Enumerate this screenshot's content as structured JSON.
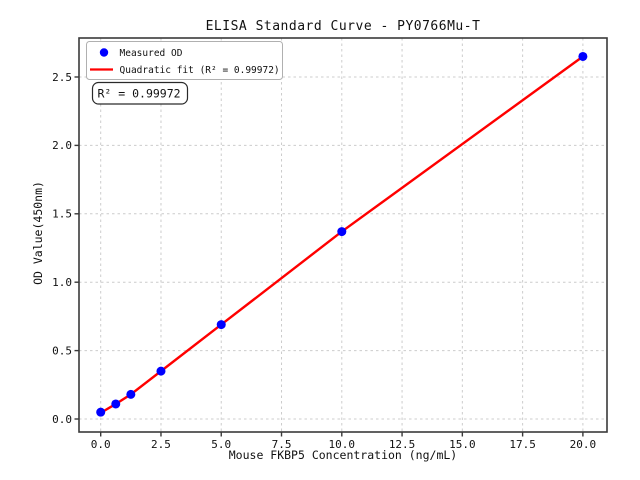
{
  "window": {
    "title": "ELISA Standard Curve - PY0766Mu-T"
  },
  "chart_data": {
    "type": "scatter",
    "title": "ELISA Standard Curve - PY0766Mu-T",
    "xlabel": "Mouse FKBP5 Concentration (ng/mL)",
    "ylabel": "OD Value(450nm)",
    "xlim": [
      -0.9,
      21.0
    ],
    "ylim": [
      -0.095,
      2.785
    ],
    "xticks": [
      0.0,
      2.5,
      5.0,
      7.5,
      10.0,
      12.5,
      15.0,
      17.5,
      20.0
    ],
    "xtick_labels": [
      "0.0",
      "2.5",
      "5.0",
      "7.5",
      "10.0",
      "12.5",
      "15.0",
      "17.5",
      "20.0"
    ],
    "yticks": [
      0.0,
      0.5,
      1.0,
      1.5,
      2.0,
      2.5
    ],
    "ytick_labels": [
      "0.0",
      "0.5",
      "1.0",
      "1.5",
      "2.0",
      "2.5"
    ],
    "grid": true,
    "grid_style": "dashed",
    "legend_position": "upper left",
    "series": [
      {
        "name": "Measured OD",
        "type": "scatter",
        "color": "#0000ff",
        "x": [
          0,
          0.625,
          1.25,
          2.5,
          5,
          10,
          20
        ],
        "y": [
          0.05,
          0.11,
          0.18,
          0.35,
          0.69,
          1.37,
          2.65
        ]
      },
      {
        "name": "Quadratic fit (R² = 0.99972)",
        "type": "line",
        "color": "#ff0000",
        "x": [
          0,
          0.625,
          1.25,
          2.5,
          5,
          10,
          20
        ],
        "y": [
          0.045,
          0.11,
          0.18,
          0.35,
          0.69,
          1.37,
          2.65
        ]
      }
    ],
    "annotation": "R² = 0.99972",
    "r_squared": "0.99972",
    "colors": {
      "marker": "#0000ff",
      "fit_line": "#ff0000",
      "grid": "#cccccc",
      "spine": "#3a3a3a",
      "text": "#111111",
      "legend_border": "#b0b0b0",
      "annotation_border": "#2a2a2a",
      "background": "#ffffff"
    }
  }
}
